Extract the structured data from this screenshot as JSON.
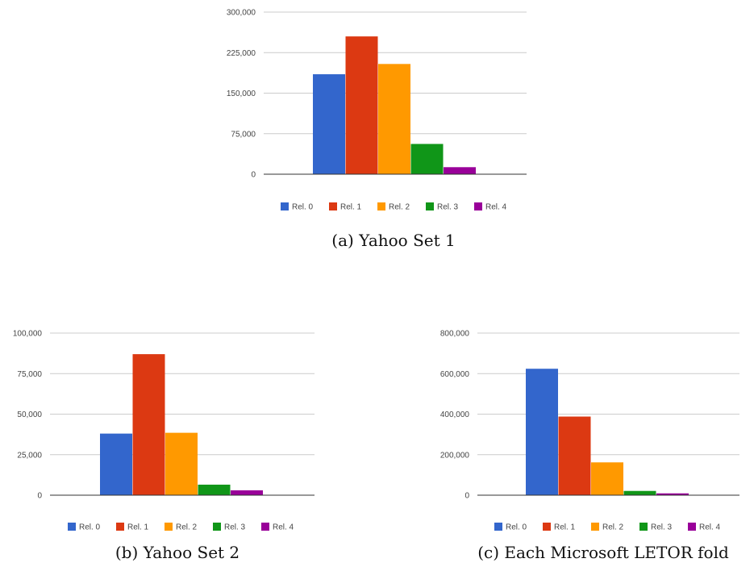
{
  "colors": {
    "series": [
      "#3366cc",
      "#dc3912",
      "#ff9900",
      "#109618",
      "#990099"
    ],
    "grid": "#cccccc",
    "axis": "#333333",
    "text": "#444444"
  },
  "chart_data": [
    {
      "type": "bar",
      "caption": "(a) Yahoo Set 1",
      "categories": [
        "Rel. 0",
        "Rel. 1",
        "Rel. 2",
        "Rel. 3",
        "Rel. 4"
      ],
      "values": [
        185000,
        255000,
        204000,
        56000,
        13000
      ],
      "ylim": [
        0,
        300000
      ],
      "ticks": [
        "0",
        "75,000",
        "150,000",
        "225,000",
        "300,000"
      ],
      "legend_position": "bottom",
      "grid": true
    },
    {
      "type": "bar",
      "caption": "(b) Yahoo Set 2",
      "categories": [
        "Rel. 0",
        "Rel. 1",
        "Rel. 2",
        "Rel. 3",
        "Rel. 4"
      ],
      "values": [
        38000,
        87000,
        38500,
        6500,
        3000
      ],
      "ylim": [
        0,
        100000
      ],
      "ticks": [
        "0",
        "25,000",
        "50,000",
        "75,000",
        "100,000"
      ],
      "legend_position": "bottom",
      "grid": true
    },
    {
      "type": "bar",
      "caption": "(c) Each Microsoft LETOR fold",
      "categories": [
        "Rel. 0",
        "Rel. 1",
        "Rel. 2",
        "Rel. 3",
        "Rel. 4"
      ],
      "values": [
        624000,
        388000,
        162000,
        21000,
        9000
      ],
      "ylim": [
        0,
        800000
      ],
      "ticks": [
        "0",
        "200,000",
        "400,000",
        "600,000",
        "800,000"
      ],
      "legend_position": "bottom",
      "grid": true
    }
  ]
}
